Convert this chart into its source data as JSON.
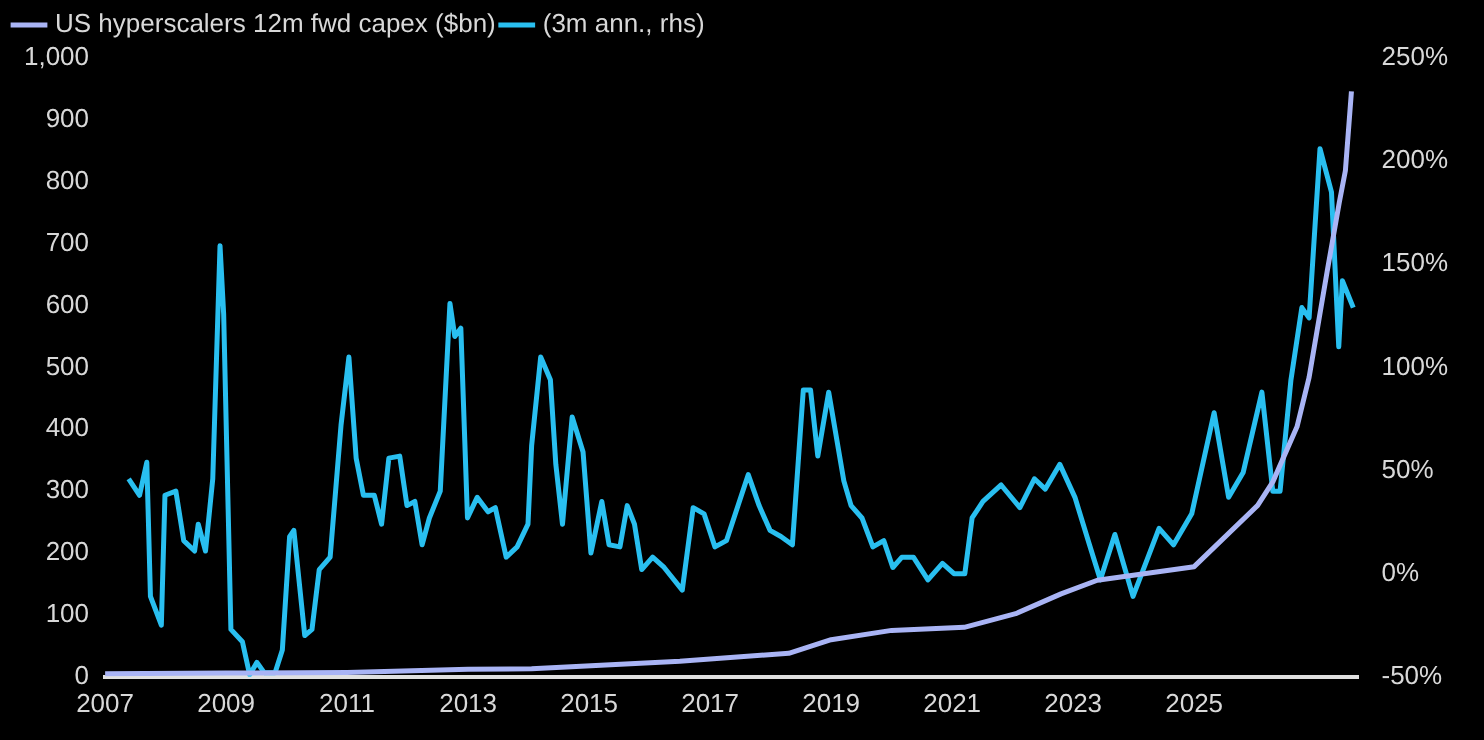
{
  "chart_data": {
    "type": "line",
    "xlim": [
      2007,
      2027.7
    ],
    "xticks": [
      2007,
      2009,
      2011,
      2013,
      2015,
      2017,
      2019,
      2021,
      2023,
      2025
    ],
    "ylim": [
      0,
      1000
    ],
    "yticks": [
      0,
      100,
      200,
      300,
      400,
      500,
      600,
      700,
      800,
      900,
      {
        "value": 1000,
        "label": "1,000"
      }
    ],
    "y2lim": [
      -50,
      250
    ],
    "y2ticks": [
      {
        "value": -50,
        "label": "-50%"
      },
      {
        "value": 0,
        "label": "0%"
      },
      {
        "value": 50,
        "label": "50%"
      },
      {
        "value": 100,
        "label": "100%"
      },
      {
        "value": 150,
        "label": "150%"
      },
      {
        "value": 200,
        "label": "200%"
      },
      {
        "value": 250,
        "label": "250%"
      }
    ],
    "grid": false,
    "legend": "top left",
    "marker": "none",
    "line_style": "solid",
    "series": [
      {
        "name": "US hyperscalers 12m fwd capex ($bn)",
        "color": "#a9b4f5",
        "x": [
          2007,
          2009,
          2011,
          2013,
          2014.05,
          2016.5,
          2018.3,
          2019,
          2020,
          2021.2,
          2022.05,
          2022.8,
          2023.4,
          2025,
          2026.05,
          2026.3,
          2026.7,
          2026.9,
          2027.2,
          2027.4,
          2027.5,
          2027.6
        ],
        "values": [
          5,
          6,
          7,
          12,
          13,
          25,
          38,
          60,
          75,
          80,
          102,
          134,
          156,
          178,
          277,
          315,
          404,
          484,
          656,
          767,
          818,
          946
        ]
      },
      {
        "name": "(3m ann., rhs)",
        "color": "#29bff0",
        "axis": "y2",
        "x": [
          2007.39,
          2007.57,
          2007.69,
          2007.75,
          2007.93,
          2007.99,
          2008.17,
          2008.3,
          2008.48,
          2008.54,
          2008.66,
          2008.78,
          2008.9,
          2008.96,
          2009.08,
          2009.27,
          2009.39,
          2009.51,
          2009.63,
          2009.81,
          2009.93,
          2010.05,
          2010.12,
          2010.3,
          2010.42,
          2010.54,
          2010.72,
          2010.9,
          2011.03,
          2011.15,
          2011.27,
          2011.45,
          2011.57,
          2011.69,
          2011.87,
          2011.99,
          2012.12,
          2012.24,
          2012.36,
          2012.54,
          2012.7,
          2012.78,
          2012.88,
          2012.99,
          2013.15,
          2013.33,
          2013.45,
          2013.63,
          2013.81,
          2013.99,
          2014.05,
          2014.2,
          2014.36,
          2014.45,
          2014.56,
          2014.72,
          2014.9,
          2015.03,
          2015.21,
          2015.33,
          2015.51,
          2015.63,
          2015.75,
          2015.87,
          2016.05,
          2016.24,
          2016.54,
          2016.72,
          2016.9,
          2017.08,
          2017.27,
          2017.63,
          2017.81,
          2017.99,
          2018.17,
          2018.36,
          2018.54,
          2018.66,
          2018.78,
          2018.96,
          2019.21,
          2019.33,
          2019.51,
          2019.69,
          2019.87,
          2020.02,
          2020.17,
          2020.36,
          2020.6,
          2020.84,
          2021.03,
          2021.21,
          2021.33,
          2021.51,
          2021.81,
          2022.12,
          2022.36,
          2022.54,
          2022.78,
          2023.03,
          2023.27,
          2023.45,
          2023.69,
          2023.99,
          2024.42,
          2024.66,
          2024.96,
          2025.33,
          2025.57,
          2025.81,
          2026.12,
          2026.3,
          2026.42,
          2026.6,
          2026.78,
          2026.9,
          2027.08,
          2027.27,
          2027.39,
          2027.45,
          2027.63
        ],
        "values": [
          46,
          38,
          54,
          -11,
          -25,
          38,
          40,
          16,
          11,
          24,
          11,
          46,
          159,
          126,
          -27,
          -33,
          -49,
          -43,
          -48,
          -48,
          -37,
          18,
          21,
          -30,
          -27,
          2,
          8,
          72,
          105,
          56,
          38,
          38,
          24,
          56,
          57,
          33,
          35,
          14,
          27,
          40,
          131,
          115,
          119,
          27,
          37,
          30,
          32,
          8,
          13,
          24,
          62,
          105,
          94,
          53,
          24,
          76,
          59,
          10,
          35,
          14,
          13,
          33,
          24,
          2,
          8,
          3,
          -8,
          32,
          29,
          13,
          16,
          48,
          33,
          21,
          18,
          14,
          89,
          89,
          57,
          88,
          45,
          33,
          27,
          13,
          16,
          3,
          8,
          8,
          -3,
          5,
          0,
          0,
          27,
          35,
          43,
          32,
          46,
          41,
          53,
          37,
          14,
          -3,
          19,
          -11,
          22,
          14,
          29,
          78,
          37,
          49,
          88,
          40,
          40,
          94,
          129,
          124,
          206,
          185,
          110,
          142,
          129
        ]
      }
    ]
  }
}
